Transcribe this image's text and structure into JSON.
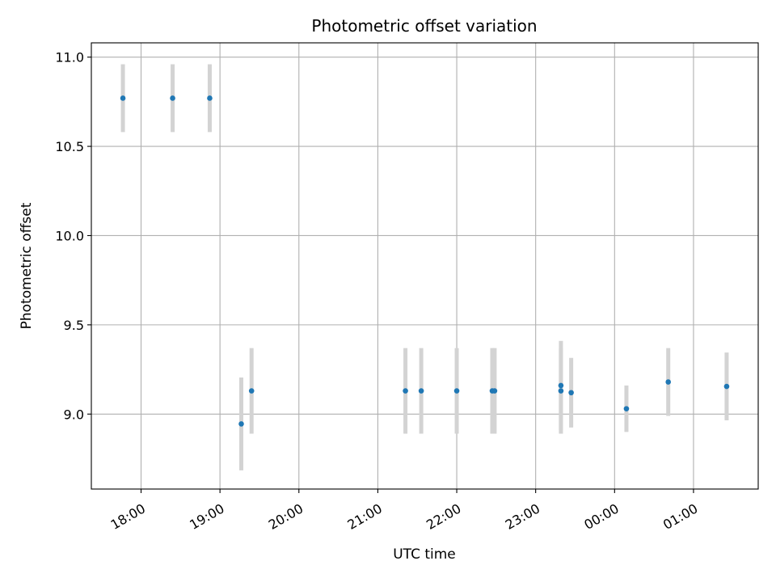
{
  "chart_data": {
    "type": "scatter",
    "title": "Photometric offset variation",
    "xlabel": "UTC time",
    "ylabel": "Photometric offset",
    "x_axis_type": "time",
    "x_unit": "hours, clock time starting on the first day; values past 24 are after midnight",
    "xlim": [
      17.37,
      25.82
    ],
    "ylim": [
      8.58,
      11.08
    ],
    "xticks": [
      18,
      19,
      20,
      21,
      22,
      23,
      24,
      25
    ],
    "xtick_labels": [
      "18:00",
      "19:00",
      "20:00",
      "21:00",
      "22:00",
      "23:00",
      "00:00",
      "01:00"
    ],
    "yticks": [
      9.0,
      9.5,
      10.0,
      10.5,
      11.0
    ],
    "ytick_labels": [
      "9.0",
      "9.5",
      "10.0",
      "10.5",
      "11.0"
    ],
    "grid": true,
    "marker_color": "#1f77b4",
    "errorbar_color": "#d3d3d3",
    "points": [
      {
        "x": 17.77,
        "y": 10.77,
        "err": 0.19
      },
      {
        "x": 18.4,
        "y": 10.77,
        "err": 0.19
      },
      {
        "x": 18.87,
        "y": 10.77,
        "err": 0.19
      },
      {
        "x": 19.27,
        "y": 8.945,
        "err": 0.26
      },
      {
        "x": 19.4,
        "y": 9.13,
        "err": 0.24
      },
      {
        "x": 21.35,
        "y": 9.13,
        "err": 0.24
      },
      {
        "x": 21.55,
        "y": 9.13,
        "err": 0.24
      },
      {
        "x": 22.0,
        "y": 9.13,
        "err": 0.24
      },
      {
        "x": 22.45,
        "y": 9.13,
        "err": 0.24
      },
      {
        "x": 22.48,
        "y": 9.13,
        "err": 0.24
      },
      {
        "x": 23.32,
        "y": 9.16,
        "err": 0.25
      },
      {
        "x": 23.32,
        "y": 9.13,
        "err": 0.24
      },
      {
        "x": 23.45,
        "y": 9.12,
        "err": 0.195
      },
      {
        "x": 24.15,
        "y": 9.03,
        "err": 0.13
      },
      {
        "x": 24.68,
        "y": 9.18,
        "err": 0.19
      },
      {
        "x": 25.42,
        "y": 9.155,
        "err": 0.19
      }
    ]
  }
}
